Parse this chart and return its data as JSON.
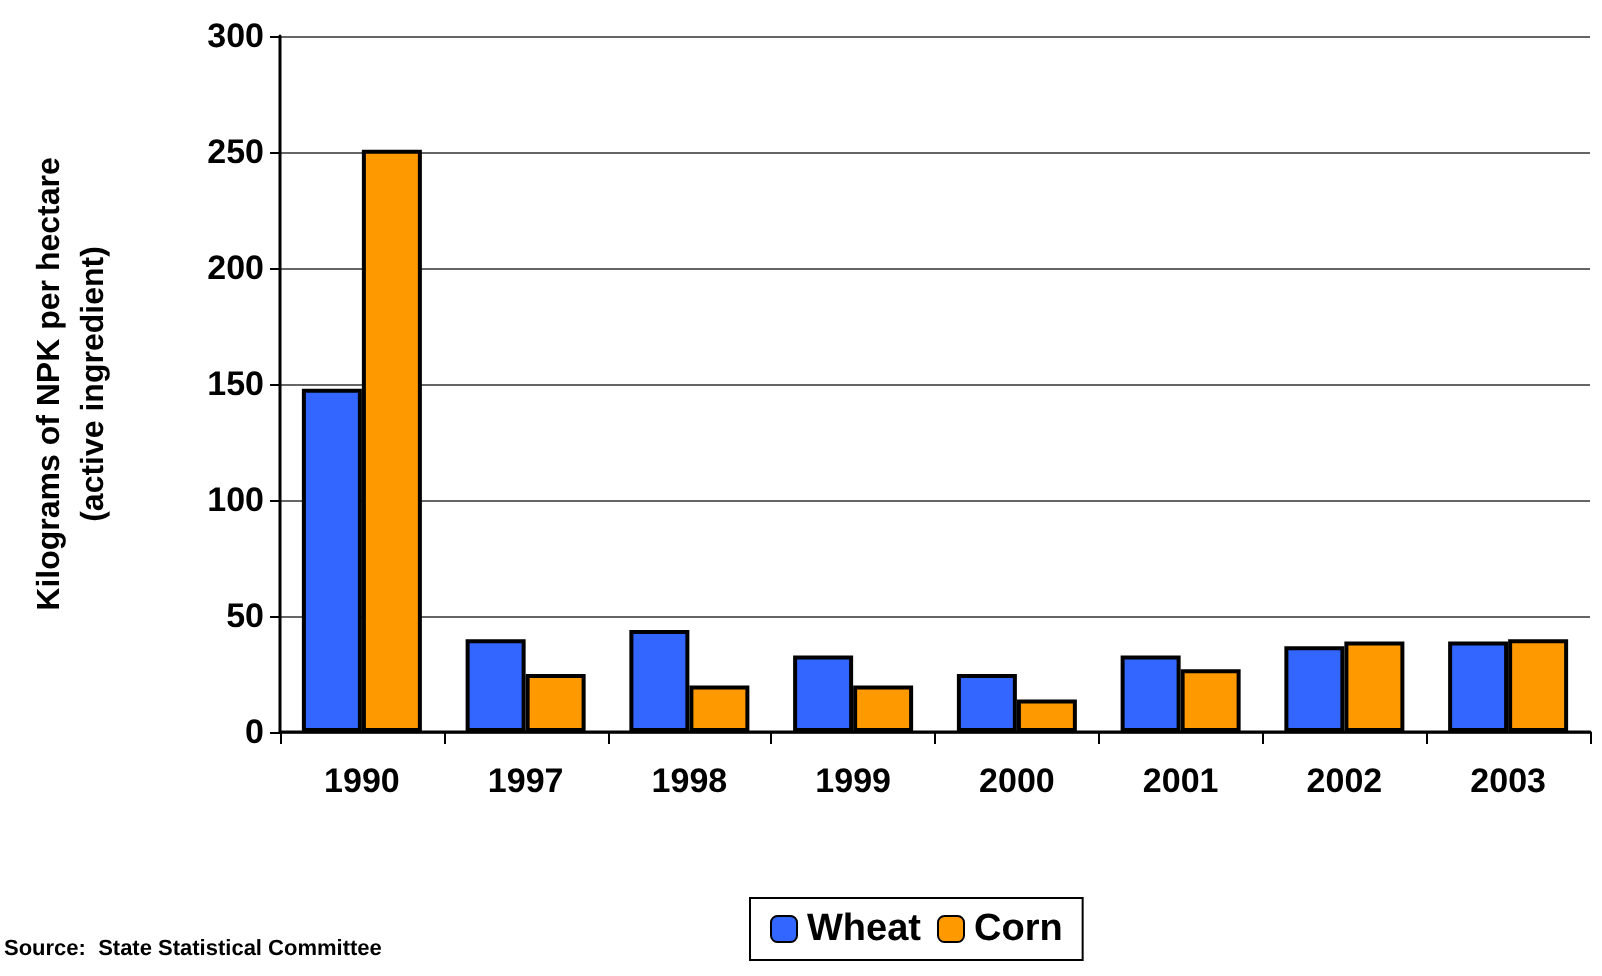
{
  "chart_data": {
    "type": "bar",
    "ylabel": "Kilograms of NPK per hectare\n(active ingredient)",
    "categories": [
      "1990",
      "1997",
      "1998",
      "1999",
      "2000",
      "2001",
      "2002",
      "2003"
    ],
    "series": [
      {
        "name": "Wheat",
        "color": "#3366ff",
        "values": [
          148,
          40,
          44,
          33,
          25,
          33,
          37,
          39
        ]
      },
      {
        "name": "Corn",
        "color": "#ff9900",
        "values": [
          251,
          25,
          20,
          20,
          14,
          27,
          39,
          40
        ]
      }
    ],
    "ylim": [
      0,
      300
    ],
    "yticks": [
      0,
      50,
      100,
      150,
      200,
      250,
      300
    ],
    "grid": "y",
    "legend": "bottom",
    "annotations": [
      "Source:  State Statistical Committee"
    ]
  }
}
